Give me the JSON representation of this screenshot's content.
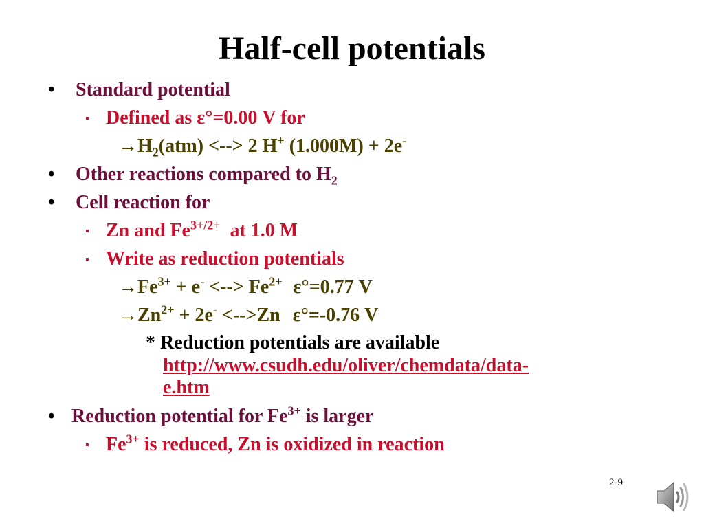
{
  "slide": {
    "title": "Half-cell potentials",
    "b1": "Standard potential",
    "b1_s1": {
      "a": "Defined as ",
      "eps": "ε",
      "b": "°=0.00 V for"
    },
    "b1_s1_t1": {
      "arrow": "→",
      "h": "H",
      "h_sub": "2",
      "a": "(atm) <--> 2 H",
      "plus": "+",
      "b": " (1.000M) + 2e",
      "minus": "-"
    },
    "b2": {
      "a": "Other reactions compared to H",
      "sub": "2"
    },
    "b3": "Cell reaction for",
    "b3_s1": {
      "a": "Zn and Fe",
      "sup": "3+/2+",
      "b": "  at 1.0 M"
    },
    "b3_s2": "Write as reduction potentials",
    "b3_s2_t1": {
      "arrow": "→",
      "a": "Fe",
      "sup1": "3+",
      "b": " + e",
      "sup2": "-",
      "c": " <--> Fe",
      "sup3": "2+",
      "eps": "ε",
      "d": "°=0.77 V"
    },
    "b3_s2_t2": {
      "arrow": "→",
      "a": "Zn",
      "sup1": "2+",
      "b": " + 2e",
      "sup2": "-",
      "c": " <-->Zn",
      "eps": "ε",
      "d": "°=-0.76 V"
    },
    "note": "* Reduction potentials are available",
    "link_1": "http://www.csudh.edu/oliver/chemdata/data-",
    "link_2": "e.htm",
    "b4": {
      "a": "Reduction potential for Fe",
      "sup": "3+",
      "b": " is larger"
    },
    "b4_s1": {
      "a": "Fe",
      "sup": "3+",
      "b": " is reduced, Zn is oxidized in reaction"
    },
    "page_number": "2-9",
    "bullet": "•",
    "square": "▪",
    "speaker_icon": "speaker-icon"
  }
}
